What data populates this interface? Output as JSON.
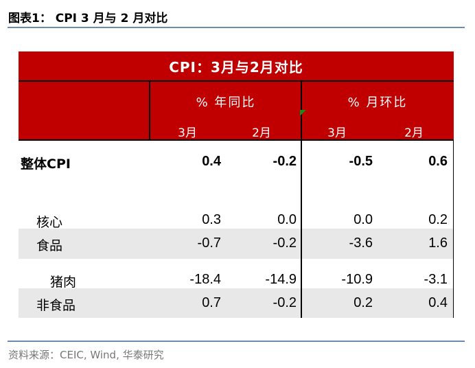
{
  "figure_title": "图表1：  CPI 3 月与 2 月对比",
  "table": {
    "title": "CPI：3月与2月对比",
    "groups": [
      "% 年同比",
      "% 月环比"
    ],
    "subheaders": [
      "3月",
      "2月",
      "3月",
      "2月"
    ],
    "rows": [
      {
        "label": "整体CPI",
        "values": [
          "0.4",
          "-0.2",
          "-0.5",
          "0.6"
        ]
      },
      {
        "label": "核心",
        "values": [
          "0.3",
          "0.0",
          "0.0",
          "0.2"
        ]
      },
      {
        "label": "食品",
        "values": [
          "-0.7",
          "-0.2",
          "-3.6",
          "1.6"
        ]
      },
      {
        "label": "猪肉",
        "values": [
          "-18.4",
          "-14.9",
          "-10.9",
          "-3.1"
        ]
      },
      {
        "label": "非食品",
        "values": [
          "0.7",
          "-0.2",
          "0.2",
          "0.4"
        ]
      }
    ]
  },
  "source": "资料来源：CEIC, Wind,  华泰研究",
  "colors": {
    "header": "#c00000",
    "rule": "#6a89b4",
    "stripe": "#e8e8e8"
  }
}
